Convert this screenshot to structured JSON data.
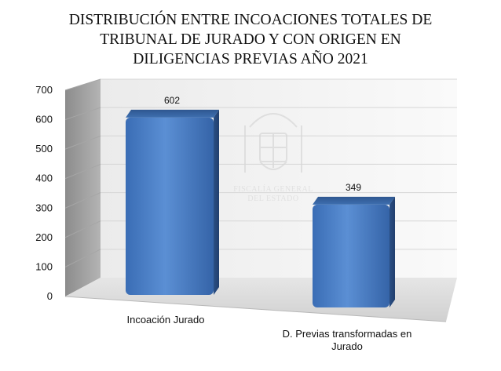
{
  "chart_data": {
    "type": "bar",
    "title_lines": [
      "DISTRIBUCIÓN ENTRE INCOACIONES TOTALES DE",
      "TRIBUNAL DE JURADO Y CON ORIGEN EN",
      "DILIGENCIAS PREVIAS AÑO 2021"
    ],
    "categories": [
      [
        "Incoación Jurado"
      ],
      [
        "D. Previas transformadas en",
        "Jurado"
      ]
    ],
    "values": [
      602,
      349
    ],
    "data_labels": [
      "602",
      "349"
    ],
    "ylim": [
      0,
      700
    ],
    "yticks": [
      0,
      100,
      200,
      300,
      400,
      500,
      600,
      700
    ],
    "ytick_labels": [
      "0",
      "100",
      "200",
      "300",
      "400",
      "500",
      "600",
      "700"
    ],
    "grid": true,
    "legend": "none",
    "bar_color": "#4f81bd",
    "watermark": {
      "text_lines": [
        "FISCALÍA GENERAL",
        "DEL ESTADO"
      ],
      "emblem": "spanish-coat-of-arms"
    }
  }
}
